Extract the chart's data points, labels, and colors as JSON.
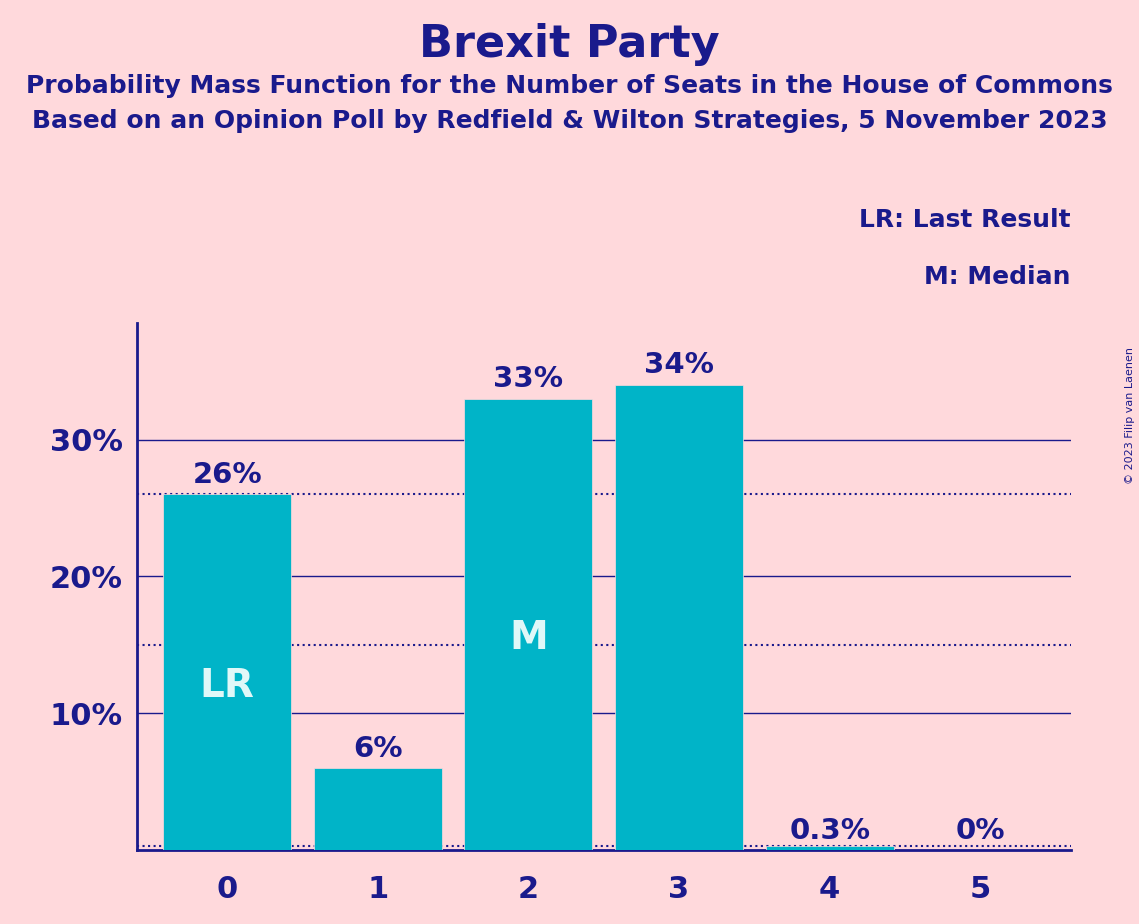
{
  "title": "Brexit Party",
  "subtitle1": "Probability Mass Function for the Number of Seats in the House of Commons",
  "subtitle2": "Based on an Opinion Poll by Redfield & Wilton Strategies, 5 November 2023",
  "copyright": "© 2023 Filip van Laenen",
  "categories": [
    0,
    1,
    2,
    3,
    4,
    5
  ],
  "values": [
    0.26,
    0.06,
    0.33,
    0.34,
    0.003,
    0.0
  ],
  "bar_labels": [
    "26%",
    "6%",
    "33%",
    "34%",
    "0.3%",
    "0%"
  ],
  "bar_color": "#00B4C8",
  "background_color": "#FFD9DC",
  "text_color_dark": "#1a1a8c",
  "text_color_white": "#e0f8f8",
  "yticks": [
    0.1,
    0.2,
    0.3
  ],
  "ytick_labels": [
    "10%",
    "20%",
    "30%"
  ],
  "ylim": [
    0,
    0.385
  ],
  "dotted_lines": [
    0.26,
    0.15,
    0.003
  ],
  "lr_bar_index": 0,
  "median_bar_index": 2,
  "legend_lr": "LR: Last Result",
  "legend_m": "M: Median",
  "title_fontsize": 32,
  "subtitle_fontsize": 18,
  "bar_label_fontsize": 21,
  "axis_label_fontsize": 22,
  "legend_fontsize": 18,
  "lr_label_fontsize": 28,
  "m_label_fontsize": 28
}
